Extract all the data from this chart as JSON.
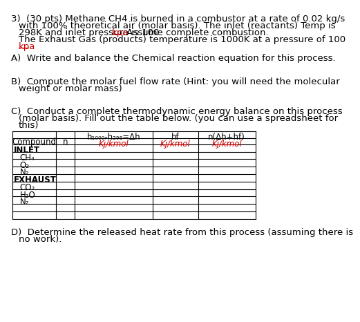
{
  "background_color": "#ffffff",
  "text_color": "#000000",
  "red_color": "#cc0000",
  "font_size_body": 9.5,
  "font_size_table": 8.5,
  "line1": "3)  (30 pts) Methane CH4 is burned in a combustor at a rate of 0.02 kg/s",
  "line2": "with 100% theoretical air (molar basis). The inlet (reactants) Temp is",
  "line3a": "298K and inlet pressure is 100 ",
  "line3b": "kpa",
  "line3c": " Assume complete combustion.",
  "line4": "The Exhaust Gas (products) temperature is 1000K at a pressure of 100",
  "line5": "kpa",
  "partA": "A)  Write and balance the Chemical reaction equation for this process.",
  "partB1": "B)  Compute the molar fuel flow rate (Hint: you will need the molecular",
  "partB2": "weight or molar mass)",
  "partC1": "C)  Conduct a complete thermodynamic energy balance on this process",
  "partC2": "(molar basis). Fill out the table below. (you can use a spreadsheet for",
  "partC3": "this)",
  "partD1": "D)  Determine the released heat rate from this process (assuming there is",
  "partD2": "no work).",
  "col3_header1": "h₁₀₀₀-h₂₉₈=Δh",
  "col3_header2": "Kj/kmol",
  "col4_header1": "hf",
  "col4_header2": "Kj/kmol",
  "col5_header1": "n(Δh+hf)",
  "col5_header2": "Kj/kmol",
  "table_rows": [
    "INLET",
    "CH₄",
    "O₂",
    "N₂",
    "EXHAUST",
    "CO₂",
    "H₂O",
    "N₂"
  ],
  "row_bold": [
    true,
    false,
    false,
    false,
    true,
    false,
    false,
    false
  ],
  "row_indent": [
    false,
    true,
    true,
    true,
    false,
    true,
    true,
    true
  ]
}
